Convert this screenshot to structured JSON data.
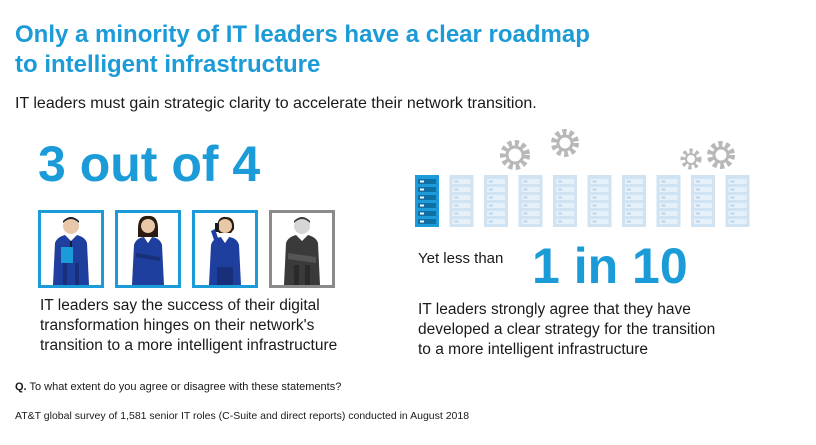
{
  "header": {
    "title_line1": "Only a minority of IT leaders have a clear roadmap",
    "title_line2": "to intelligent infrastructure",
    "subtitle": "IT leaders must gain strategic clarity to accelerate their network transition."
  },
  "left_stat": {
    "headline": "3 out of 4",
    "highlighted_count": 3,
    "total_count": 4,
    "lines": [
      "IT leaders say the success of their digital",
      "transformation hinges on their network's",
      "transition to a more intelligent infrastructure"
    ]
  },
  "right_stat": {
    "prefix": "Yet less than",
    "headline": "1 in 10",
    "highlighted_count": 1,
    "total_count": 10,
    "lines": [
      "IT leaders strongly agree that they have",
      "developed a clear strategy for the transition",
      "to a more intelligent infrastructure"
    ]
  },
  "question": {
    "label": "Q.",
    "text": "To what extent do you agree or disagree with these statements?"
  },
  "footnote": "AT&T global survey of 1,581 senior IT roles (C-Suite and direct reports) conducted in August 2018",
  "colors": {
    "accent": "#1b9bd7",
    "server_light": "#cfe3f3",
    "gear": "#b8b8b8",
    "gray_figure": "#8a8a8a"
  },
  "icons": [
    "businessman-icon",
    "businesswoman-icon",
    "woman-phone-icon",
    "man-crossed-arms-icon",
    "gear-icon",
    "server-rack-icon"
  ]
}
